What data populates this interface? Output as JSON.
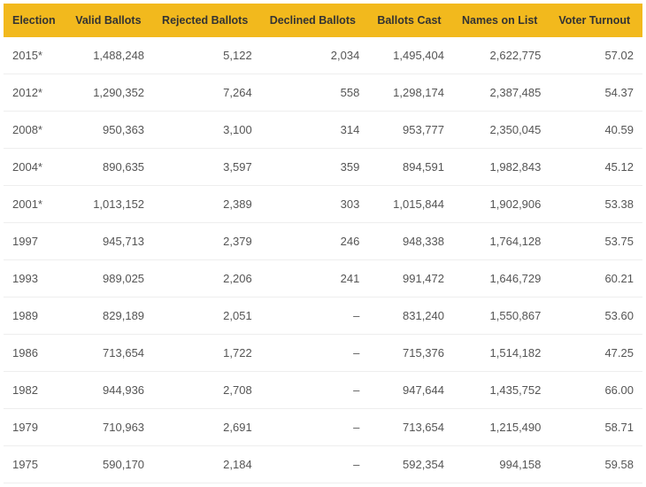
{
  "table": {
    "type": "table",
    "header_bg": "#f2b91d",
    "header_color": "#333333",
    "row_border_color": "#eeeeee",
    "text_color": "#555555",
    "font_size_header": 12.5,
    "font_size_body": 13,
    "columns": [
      "Election",
      "Valid Ballots",
      "Rejected Ballots",
      "Declined Ballots",
      "Ballots Cast",
      "Names on List",
      "Voter Turnout"
    ],
    "rows": [
      [
        "2015*",
        "1,488,248",
        "5,122",
        "2,034",
        "1,495,404",
        "2,622,775",
        "57.02"
      ],
      [
        "2012*",
        "1,290,352",
        "7,264",
        "558",
        "1,298,174",
        "2,387,485",
        "54.37"
      ],
      [
        "2008*",
        "950,363",
        "3,100",
        "314",
        "953,777",
        "2,350,045",
        "40.59"
      ],
      [
        "2004*",
        "890,635",
        "3,597",
        "359",
        "894,591",
        "1,982,843",
        "45.12"
      ],
      [
        "2001*",
        "1,013,152",
        "2,389",
        "303",
        "1,015,844",
        "1,902,906",
        "53.38"
      ],
      [
        "1997",
        "945,713",
        "2,379",
        "246",
        "948,338",
        "1,764,128",
        "53.75"
      ],
      [
        "1993",
        "989,025",
        "2,206",
        "241",
        "991,472",
        "1,646,729",
        "60.21"
      ],
      [
        "1989",
        "829,189",
        "2,051",
        "–",
        "831,240",
        "1,550,867",
        "53.60"
      ],
      [
        "1986",
        "713,654",
        "1,722",
        "–",
        "715,376",
        "1,514,182",
        "47.25"
      ],
      [
        "1982",
        "944,936",
        "2,708",
        "–",
        "947,644",
        "1,435,752",
        "66.00"
      ],
      [
        "1979",
        "710,963",
        "2,691",
        "–",
        "713,654",
        "1,215,490",
        "58.71"
      ],
      [
        "1975",
        "590,170",
        "2,184",
        "–",
        "592,354",
        "994,158",
        "59.58"
      ]
    ]
  }
}
